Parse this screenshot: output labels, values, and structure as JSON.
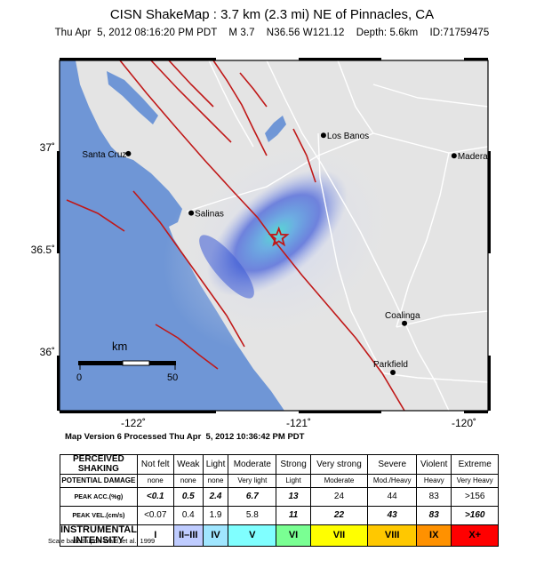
{
  "header": {
    "title": "CISN ShakeMap : 3.7 km (2.3 mi) NE of Pinnacles, CA",
    "subtitle": "Thu Apr  5, 2012 08:16:20 PM PDT    M 3.7    N36.56 W121.12    Depth: 5.6km    ID:71759475"
  },
  "map": {
    "cities": [
      {
        "name": "Los Banos",
        "lon": -120.85,
        "lat": 37.06
      },
      {
        "name": "Madera",
        "lon": -120.06,
        "lat": 36.96
      },
      {
        "name": "Santa Cruz",
        "lon": -122.03,
        "lat": 36.97
      },
      {
        "name": "Salinas",
        "lon": -121.65,
        "lat": 36.68
      },
      {
        "name": "Coalinga",
        "lon": -120.36,
        "lat": 36.14
      },
      {
        "name": "Parkfield",
        "lon": -120.43,
        "lat": 35.9
      }
    ],
    "epicenter": {
      "lon": -121.12,
      "lat": 36.56
    },
    "lat_ticks": [
      "37˚",
      "36.5˚",
      "36˚"
    ],
    "lon_ticks": [
      "-122˚",
      "-121˚",
      "-120˚"
    ],
    "scale_bar": {
      "unit": "km",
      "start": "0",
      "end": "50"
    },
    "colors": {
      "ocean": "#6f96d6",
      "land": "#e6e6e6",
      "fault": "#c01818",
      "road": "#ffffff",
      "intensity_blue": "#3d5bd6",
      "intensity_cyan": "#5fd6d6"
    }
  },
  "footer": {
    "version": "Map Version 6 Processed Thu Apr  5, 2012 10:36:42 PM PDT",
    "credit": "Scale based upon Wald, et al.; 1999"
  },
  "legend": {
    "row_labels": {
      "shaking": "PERCEIVED SHAKING",
      "damage": "POTENTIAL DAMAGE",
      "acc": "PEAK ACC.(%g)",
      "vel": "PEAK VEL.(cm/s)",
      "intensity": "INSTRUMENTAL INTENSITY"
    },
    "columns": [
      {
        "shaking": "Not felt",
        "damage": "none",
        "acc": "<0.1",
        "vel": "<0.07",
        "intensity": "I",
        "color": "#ffffff"
      },
      {
        "shaking": "Weak",
        "damage": "none",
        "acc": "0.5",
        "vel": "0.4",
        "intensity": "II–III",
        "color": "#bfccff"
      },
      {
        "shaking": "Light",
        "damage": "none",
        "acc": "2.4",
        "vel": "1.9",
        "intensity": "IV",
        "color": "#a0e6ff"
      },
      {
        "shaking": "Moderate",
        "damage": "Very light",
        "acc": "6.7",
        "vel": "5.8",
        "intensity": "V",
        "color": "#80ffff"
      },
      {
        "shaking": "Strong",
        "damage": "Light",
        "acc": "13",
        "vel": "11",
        "intensity": "VI",
        "color": "#7aff93"
      },
      {
        "shaking": "Very strong",
        "damage": "Moderate",
        "acc": "24",
        "vel": "22",
        "intensity": "VII",
        "color": "#ffff00"
      },
      {
        "shaking": "Severe",
        "damage": "Mod./Heavy",
        "acc": "44",
        "vel": "43",
        "intensity": "VIII",
        "color": "#ffc800"
      },
      {
        "shaking": "Violent",
        "damage": "Heavy",
        "acc": "83",
        "vel": "83",
        "intensity": "IX",
        "color": "#ff9100"
      },
      {
        "shaking": "Extreme",
        "damage": "Very Heavy",
        "acc": ">156",
        "vel": ">160",
        "intensity": "X+",
        "color": "#ff0000"
      }
    ]
  }
}
